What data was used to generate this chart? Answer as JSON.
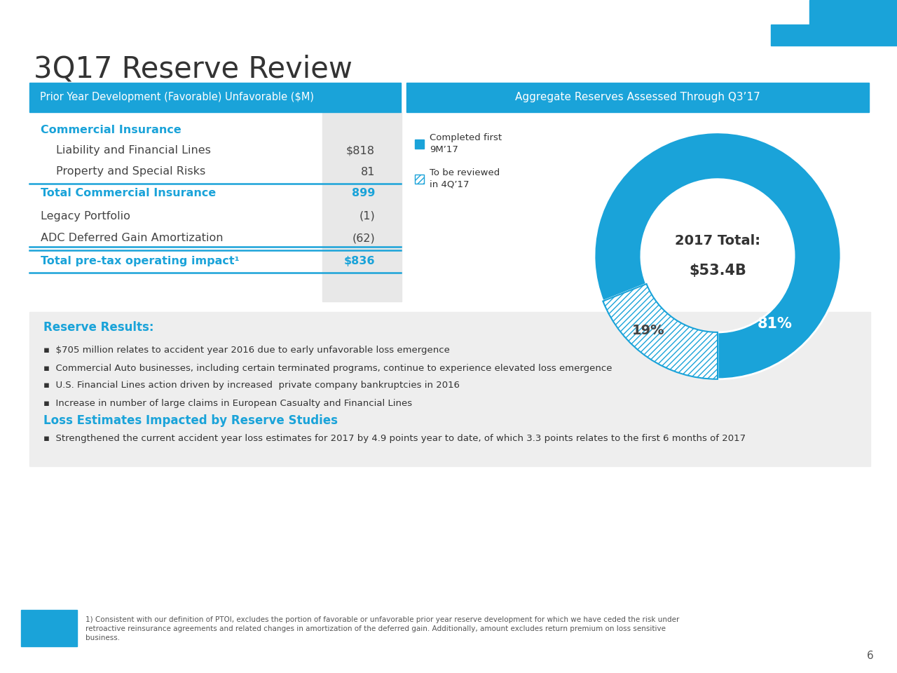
{
  "title": "3Q17 Reserve Review",
  "title_fontsize": 30,
  "title_color": "#333333",
  "header_bg_color": "#1aa3d9",
  "header_text_color": "#ffffff",
  "left_header": "Prior Year Development (Favorable) Unfavorable ($M)",
  "right_header": "Aggregate Reserves Assessed Through Q3’17",
  "table_rows": [
    {
      "label": "Commercial Insurance",
      "value": "",
      "bold": true,
      "color": "#1aa3d9",
      "indent": 0
    },
    {
      "label": "Liability and Financial Lines",
      "value": "$818",
      "bold": false,
      "color": "#444444",
      "indent": 1
    },
    {
      "label": "Property and Special Risks",
      "value": "81",
      "bold": false,
      "color": "#444444",
      "indent": 1
    },
    {
      "label": "Total Commercial Insurance",
      "value": "899",
      "bold": true,
      "color": "#1aa3d9",
      "indent": 0
    },
    {
      "label": "Legacy Portfolio",
      "value": "(1)",
      "bold": false,
      "color": "#444444",
      "indent": 0
    },
    {
      "label": "ADC Deferred Gain Amortization",
      "value": "(62)",
      "bold": false,
      "color": "#444444",
      "indent": 0
    },
    {
      "label": "Total pre-tax operating impact¹",
      "value": "$836",
      "bold": true,
      "color": "#1aa3d9",
      "indent": 0
    }
  ],
  "donut_values": [
    81,
    19
  ],
  "donut_center_text1": "2017 Total:",
  "donut_center_text2": "$53.4B",
  "donut_label_81": "81%",
  "donut_label_19": "19%",
  "legend_completed": "Completed first\n9M’17",
  "legend_tobe": "To be reviewed\nin 4Q’17",
  "results_box_bg": "#eeeeee",
  "results_title": "Reserve Results:",
  "results_title_color": "#1aa3d9",
  "results_bullets": [
    "$705 million relates to accident year 2016 due to early unfavorable loss emergence",
    "Commercial Auto businesses, including certain terminated programs, continue to experience elevated loss emergence",
    "U.S. Financial Lines action driven by increased  private company bankruptcies in 2016",
    "Increase in number of large claims in European Casualty and Financial Lines"
  ],
  "loss_title": "Loss Estimates Impacted by Reserve Studies",
  "loss_title_color": "#1aa3d9",
  "loss_bullet": "Strengthened the current accident year loss estimates for 2017 by 4.9 points year to date, of which 3.3 points relates to the first 6 months of 2017",
  "footnote_line1": "1) Consistent with our definition of PTOI, excludes the portion of favorable or unfavorable prior year reserve development for which we have ceded the risk under",
  "footnote_line2": "retroactive reinsurance agreements and related changes in amortization of the deferred gain. Additionally, amount excludes return premium on loss sensitive",
  "footnote_line3": "business.",
  "page_number": "6",
  "accent_color": "#1aa3d9",
  "bg_color": "#ffffff",
  "separator_line_color": "#1aa3d9",
  "value_bg_color": "#e8e8e8"
}
